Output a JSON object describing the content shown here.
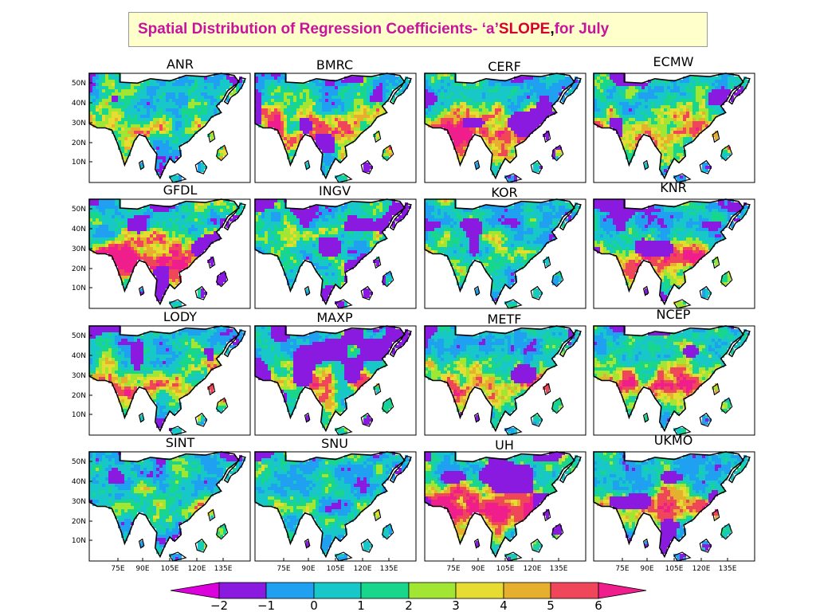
{
  "title": {
    "part1": "Spatial Distribution of Regression Coefficients- ‘a’ ",
    "part2": "SLOPE",
    "part3": ",",
    "part4": " for  July"
  },
  "colors": {
    "title_magenta": "#c8149b",
    "title_red": "#d8002c",
    "title_background": "#ffffcc",
    "land_outline": "#000000",
    "ocean": "#ffffff"
  },
  "chart_data": {
    "type": "heatmap",
    "title": "Spatial Distribution of Regression Coefficients- ‘a’ SLOPE, for  July",
    "panels": [
      "ANR",
      "BMRC",
      "CERF",
      "ECMW",
      "GFDL",
      "INGV",
      "KOR",
      "KNR",
      "LODY",
      "MAXP",
      "METF",
      "NCEP",
      "SINT",
      "SNU",
      "UH",
      "UKMO"
    ],
    "x_ticks": [
      "75E",
      "90E",
      "105E",
      "120E",
      "135E"
    ],
    "y_ticks": [
      "50N",
      "40N",
      "30N",
      "20N",
      "10N"
    ],
    "colorbar": {
      "tick_labels": [
        "−2",
        "−1",
        "0",
        "1",
        "2",
        "3",
        "4",
        "5",
        "6"
      ],
      "bins": [
        {
          "range": "< -2",
          "color": "#dc00dc"
        },
        {
          "range": "-2 to -1",
          "color": "#8a1ae0"
        },
        {
          "range": "-1 to 0",
          "color": "#20a0f0"
        },
        {
          "range": "0 to 1",
          "color": "#18c8c8"
        },
        {
          "range": "1 to 2",
          "color": "#18d68c"
        },
        {
          "range": "2 to 3",
          "color": "#a0e632"
        },
        {
          "range": "3 to 4",
          "color": "#e6dc32"
        },
        {
          "range": "4 to 5",
          "color": "#e6af2d"
        },
        {
          "range": "5 to 6",
          "color": "#f0465a"
        },
        {
          "range": "> 6",
          "color": "#f01e8c"
        }
      ]
    }
  }
}
